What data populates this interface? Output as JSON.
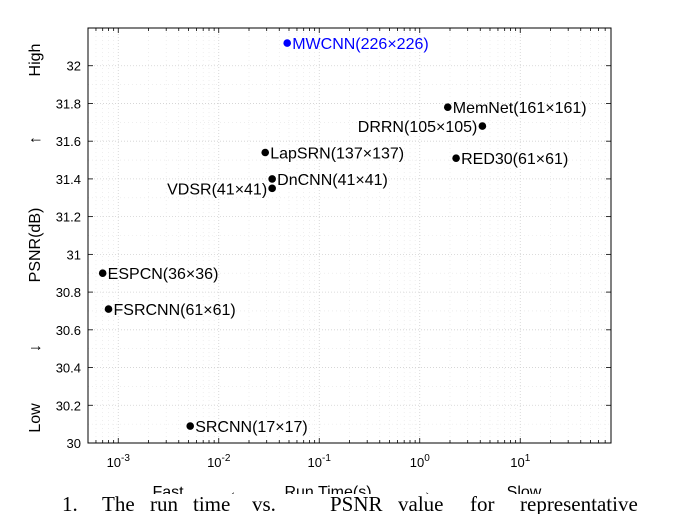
{
  "chart_data": {
    "type": "scatter",
    "xscale": "log",
    "xlim": [
      0.0005,
      80
    ],
    "ylim": [
      30,
      32.2
    ],
    "x_ticks": [
      0.001,
      0.01,
      0.1,
      1,
      10
    ],
    "x_tick_labels": [
      {
        "base": "10",
        "exp": "-3"
      },
      {
        "base": "10",
        "exp": "-2"
      },
      {
        "base": "10",
        "exp": "-1"
      },
      {
        "base": "10",
        "exp": "0"
      },
      {
        "base": "10",
        "exp": "1"
      }
    ],
    "y_ticks": [
      30,
      30.2,
      30.4,
      30.6,
      30.8,
      31,
      31.2,
      31.4,
      31.6,
      31.8,
      32
    ],
    "y_tick_labels": [
      "30",
      "30.2",
      "30.4",
      "30.6",
      "30.8",
      "31",
      "31.2",
      "31.4",
      "31.6",
      "31.8",
      "32"
    ],
    "ylabel": "PSNR(dB)",
    "ylabel_low": "Low",
    "ylabel_high": "High",
    "ylabel_arrow_up": "↑",
    "ylabel_arrow_down": "↓",
    "xlabel_fast": "Fast",
    "xlabel_arrow_left": "←",
    "xlabel_mid": "Run Time(s)",
    "xlabel_arrow_right": "→",
    "xlabel_slow": "Slow",
    "grid": true,
    "points": [
      {
        "name": "MWCNN(226×226)",
        "x": 0.048,
        "y": 32.12,
        "color": "#0000ff",
        "label_side": "right"
      },
      {
        "name": "MemNet(161×161)",
        "x": 1.9,
        "y": 31.78,
        "color": "#000000",
        "label_side": "right"
      },
      {
        "name": "DRRN(105×105)",
        "x": 4.2,
        "y": 31.68,
        "color": "#000000",
        "label_side": "left"
      },
      {
        "name": "LapSRN(137×137)",
        "x": 0.029,
        "y": 31.54,
        "color": "#000000",
        "label_side": "right"
      },
      {
        "name": "RED30(61×61)",
        "x": 2.3,
        "y": 31.51,
        "color": "#000000",
        "label_side": "right"
      },
      {
        "name": "DnCNN(41×41)",
        "x": 0.034,
        "y": 31.4,
        "color": "#000000",
        "label_side": "right"
      },
      {
        "name": "VDSR(41×41)",
        "x": 0.034,
        "y": 31.35,
        "color": "#000000",
        "label_side": "left"
      },
      {
        "name": "ESPCN(36×36)",
        "x": 0.0007,
        "y": 30.9,
        "color": "#000000",
        "label_side": "right"
      },
      {
        "name": "FSRCNN(61×61)",
        "x": 0.0008,
        "y": 30.71,
        "color": "#000000",
        "label_side": "right"
      },
      {
        "name": "SRCNN(17×17)",
        "x": 0.0052,
        "y": 30.09,
        "color": "#000000",
        "label_side": "right"
      }
    ]
  },
  "caption": {
    "prefix": "1.",
    "words": [
      "The",
      "run",
      "time",
      "vs.",
      "PSNR",
      "value",
      "for",
      "representative"
    ]
  }
}
